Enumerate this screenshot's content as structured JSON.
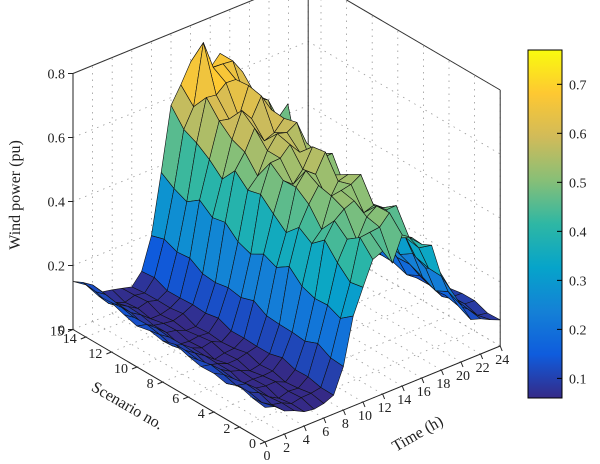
{
  "chart_data": {
    "type": "surface",
    "title": "",
    "xlabel": "Time (h)",
    "ylabel": "Scenario no.",
    "zlabel": "Wind power (pu)",
    "xlim": [
      0,
      24
    ],
    "ylim": [
      0,
      15
    ],
    "zlim": [
      0,
      0.8
    ],
    "x_ticks": [
      "0",
      "2",
      "4",
      "6",
      "8",
      "10",
      "12",
      "14",
      "16",
      "18",
      "20",
      "22",
      "24"
    ],
    "y_ticks": [
      "0",
      "2",
      "4",
      "6",
      "8",
      "10",
      "12",
      "14",
      "15"
    ],
    "z_ticks": [
      "0",
      "0.2",
      "0.4",
      "0.6",
      "0.8"
    ],
    "grid": true,
    "colormap": "parula",
    "colorbar": {
      "range": [
        0.06,
        0.77
      ],
      "ticks": [
        "0.1",
        "0.2",
        "0.3",
        "0.4",
        "0.5",
        "0.6",
        "0.7"
      ]
    },
    "profile_hourly_mean": [
      0.12,
      0.1,
      0.08,
      0.06,
      0.05,
      0.05,
      0.05,
      0.07,
      0.15,
      0.28,
      0.4,
      0.47,
      0.5,
      0.5,
      0.52,
      0.5,
      0.46,
      0.4,
      0.33,
      0.27,
      0.2,
      0.15,
      0.12,
      0.1,
      0.09
    ],
    "scenario_scale": [
      0.9,
      0.94,
      0.97,
      1.0,
      1.02,
      1.04,
      1.06,
      1.08,
      1.1,
      1.12,
      1.15,
      1.18,
      1.22,
      1.26,
      1.3,
      1.34
    ],
    "peak_value": 0.77
  }
}
